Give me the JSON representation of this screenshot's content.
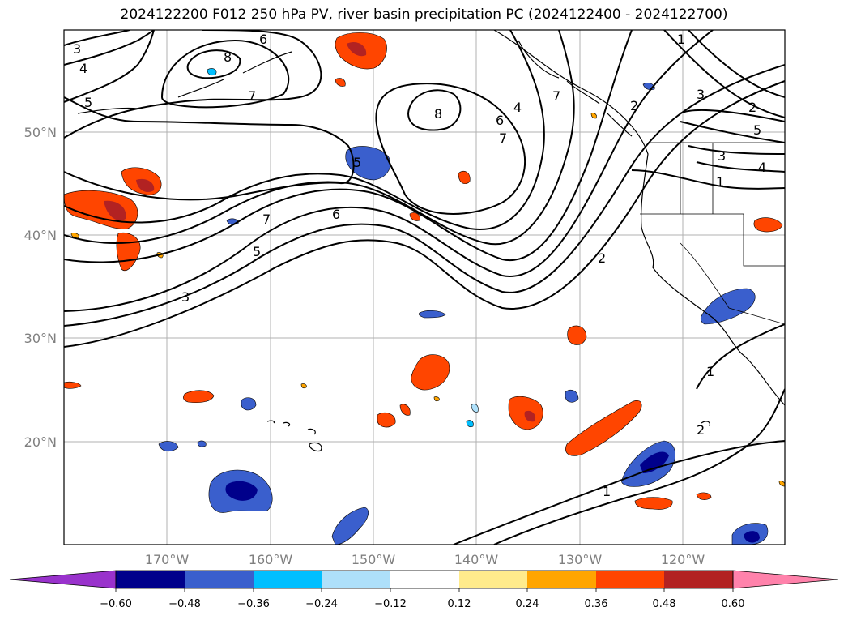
{
  "title": "2024122200 F012 250 hPa PV, river basin precipitation PC (2024122400 - 2024122700)",
  "latitude_labels": [
    "50°N",
    "40°N",
    "30°N",
    "20°N"
  ],
  "longitude_labels": [
    "170°W",
    "160°W",
    "150°W",
    "140°W",
    "130°W",
    "120°W"
  ],
  "colorbar": {
    "ticks": [
      "−0.60",
      "−0.48",
      "−0.36",
      "−0.24",
      "−0.12",
      "0.12",
      "0.24",
      "0.36",
      "0.48",
      "0.60"
    ],
    "colors": [
      "#9932CC",
      "#00008B",
      "#3A5FCD",
      "#00BFFF",
      "#AEE0FA",
      "#FFFFFF",
      "#FFEB8C",
      "#FFA500",
      "#FF4500",
      "#B22222",
      "#FF82AB"
    ]
  },
  "contour_labels": [
    "3",
    "4",
    "5",
    "6",
    "8",
    "7",
    "8",
    "6",
    "7",
    "4",
    "7",
    "1",
    "2",
    "3",
    "5",
    "4",
    "3",
    "1",
    "2",
    "5",
    "7",
    "6",
    "5",
    "3",
    "2",
    "1",
    "1",
    "2"
  ],
  "colors": {
    "grid": "#b0b0b0",
    "contour": "#000000",
    "coast": "#000000"
  }
}
